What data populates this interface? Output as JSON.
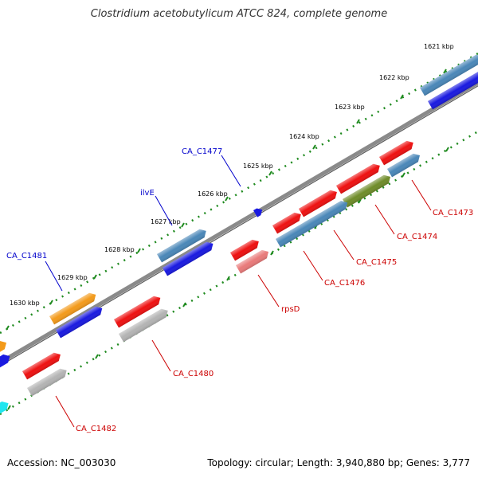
{
  "title": "Clostridium acetobutylicum ATCC 824, complete genome",
  "footer": {
    "accession": "Accession: NC_003030",
    "summary": "Topology: circular; Length: 3,940,880 bp; Genes: 3,777"
  },
  "ticks": [
    "1621 kbp",
    "1622 kbp",
    "1623 kbp",
    "1624 kbp",
    "1625 kbp",
    "1626 kbp",
    "1627 kbp",
    "1628 kbp",
    "1629 kbp",
    "1630 kbp"
  ],
  "labels_outer": [
    "CA_C1477",
    "ilvE",
    "CA_C1481"
  ],
  "labels_inner": [
    "CA_C1473",
    "CA_C1474",
    "CA_C1475",
    "CA_C1476",
    "rpsD",
    "CA_C1480",
    "CA_C1482"
  ],
  "colors": {
    "red": "#ee1111",
    "blue": "#1a1ae0",
    "steel": "#4a87b8",
    "orange": "#f39a1a",
    "gray": "#b3b3b3",
    "olive": "#6f8c2a",
    "pink": "#e97a7a",
    "cyan": "#21e6ef",
    "backbone": "#8a8a8a",
    "tick": "#1e8a1e",
    "label_red": "#cc0000",
    "label_blue": "#0000cc"
  }
}
